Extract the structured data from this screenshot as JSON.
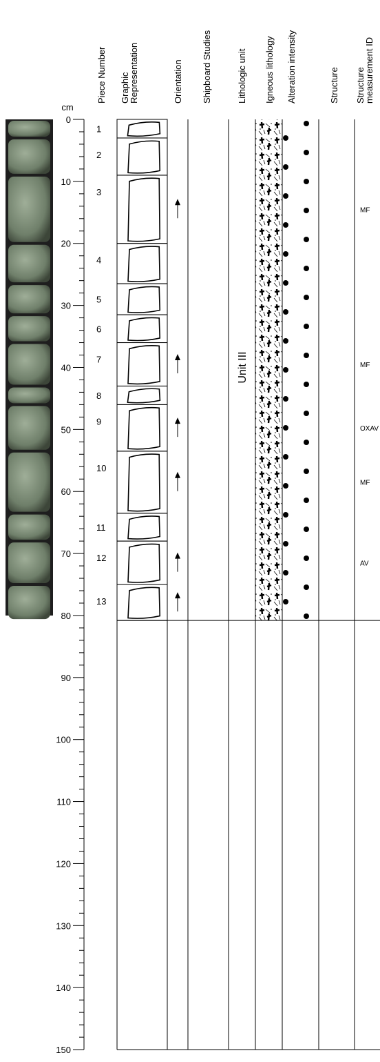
{
  "depth_axis": {
    "unit": "cm",
    "ticks": [
      0,
      10,
      20,
      30,
      40,
      50,
      60,
      70,
      80,
      90,
      100,
      110,
      120,
      130,
      140,
      150
    ]
  },
  "columns": {
    "piece_number": "Piece Number",
    "graphic_representation": [
      "Graphic",
      "Representation"
    ],
    "orientation": "Orientation",
    "shipboard_studies": "Shipboard Studies",
    "lithologic_unit": "Lithologic unit",
    "igneous_lithology": "Igneous lithology",
    "alteration_intensity": "Alteration intensity",
    "structure": "Structure",
    "structure_measurement_id": [
      "Structure",
      "measurement ID"
    ]
  },
  "lithologic_unit": "Unit III",
  "pieces": [
    {
      "number": "1",
      "top": 0,
      "bottom": 3,
      "oriented": false,
      "structure_id": null
    },
    {
      "number": "2",
      "top": 3,
      "bottom": 9,
      "oriented": false,
      "structure_id": null
    },
    {
      "number": "3",
      "top": 9,
      "bottom": 20,
      "oriented": true,
      "structure_id": "MF"
    },
    {
      "number": "4",
      "top": 20,
      "bottom": 26.5,
      "oriented": false,
      "structure_id": null
    },
    {
      "number": "5",
      "top": 26.5,
      "bottom": 31.5,
      "oriented": false,
      "structure_id": null
    },
    {
      "number": "6",
      "top": 31.5,
      "bottom": 36,
      "oriented": false,
      "structure_id": null
    },
    {
      "number": "7",
      "top": 36,
      "bottom": 43,
      "oriented": true,
      "structure_id": "MF"
    },
    {
      "number": "8",
      "top": 43,
      "bottom": 46,
      "oriented": false,
      "structure_id": null
    },
    {
      "number": "9",
      "top": 46,
      "bottom": 53.5,
      "oriented": true,
      "structure_id": "OXAV"
    },
    {
      "number": "10",
      "top": 53.5,
      "bottom": 63.5,
      "oriented": true,
      "structure_id": "MF"
    },
    {
      "number": "11",
      "top": 63.5,
      "bottom": 68,
      "oriented": false,
      "structure_id": null
    },
    {
      "number": "12",
      "top": 68,
      "bottom": 75,
      "oriented": true,
      "structure_id": "AV"
    },
    {
      "number": "13",
      "top": 75,
      "bottom": 80.8,
      "oriented": true,
      "structure_id": null
    }
  ]
}
